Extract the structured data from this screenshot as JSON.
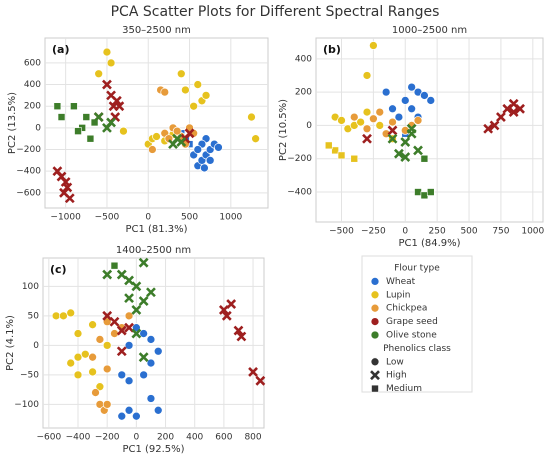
{
  "title": "PCA Scatter Plots for Different Spectral Ranges",
  "legend": {
    "title": "Flour type",
    "entries": [
      {
        "label": "Wheat",
        "color": "#2a6fd0"
      },
      {
        "label": "Lupin",
        "color": "#e6c21e"
      },
      {
        "label": "Chickpea",
        "color": "#e79b3a"
      },
      {
        "label": "Grape seed",
        "color": "#9e1f1f"
      },
      {
        "label": "Olive stone",
        "color": "#3d7d2a"
      }
    ],
    "class_title": "Phenolics class",
    "classes": [
      {
        "label": "Low",
        "marker": "circle"
      },
      {
        "label": "High",
        "marker": "x"
      },
      {
        "label": "Medium",
        "marker": "square"
      }
    ]
  },
  "chart_data": [
    {
      "type": "scatter",
      "panel_label": "(a)",
      "title": "350–2500 nm",
      "xlabel": "PC1 (81.3%)",
      "ylabel": "PC2 (13.5%)",
      "grid": true,
      "xlim": [
        -1250,
        1450
      ],
      "ylim": [
        -740,
        830
      ],
      "xticks": [
        {
          "value": -1000,
          "label": "−1000"
        },
        {
          "value": -500,
          "label": "−500"
        },
        0,
        500,
        1000
      ],
      "yticks": [
        {
          "value": -600,
          "label": "−600"
        },
        {
          "value": -400,
          "label": "−400"
        },
        {
          "value": -200,
          "label": "−200"
        },
        0,
        200,
        400,
        600
      ],
      "series": [
        {
          "name": "Wheat",
          "color": "#2a6fd0",
          "x": [
            600,
            650,
            700,
            750,
            800,
            850,
            550,
            500,
            450,
            700,
            650,
            600,
            400,
            750,
            680
          ],
          "y": [
            -350,
            -300,
            -250,
            -200,
            -150,
            -180,
            -250,
            -150,
            -100,
            -100,
            -150,
            -200,
            -50,
            -300,
            -370
          ],
          "classes": [
            "Low",
            "Low",
            "Low",
            "Low",
            "Low",
            "Low",
            "Low",
            "Medium",
            "Low",
            "Low",
            "Low",
            "Low",
            "Medium",
            "Low",
            "Low"
          ]
        },
        {
          "name": "Lupin",
          "color": "#e6c21e",
          "x": [
            400,
            450,
            600,
            650,
            700,
            550,
            1300,
            1250,
            -500,
            -450,
            -600,
            -300,
            0,
            50,
            100,
            200,
            300
          ],
          "y": [
            500,
            350,
            400,
            250,
            300,
            200,
            -100,
            100,
            700,
            600,
            500,
            -30,
            -150,
            -100,
            -80,
            -120,
            -60
          ],
          "classes": [
            "Low",
            "Low",
            "Low",
            "Low",
            "Low",
            "Low",
            "Low",
            "Low",
            "Low",
            "Low",
            "Low",
            "Low",
            "Low",
            "Low",
            "Low",
            "Low",
            "Low"
          ]
        },
        {
          "name": "Chickpea",
          "color": "#e79b3a",
          "x": [
            200,
            300,
            400,
            450,
            500,
            250,
            350,
            550,
            150,
            200,
            50
          ],
          "y": [
            -50,
            0,
            -80,
            -150,
            0,
            -100,
            -30,
            -50,
            350,
            330,
            -200
          ],
          "classes": [
            "Low",
            "Low",
            "Low",
            "Low",
            "Low",
            "Low",
            "Low",
            "Low",
            "Low",
            "Low",
            "Low"
          ]
        },
        {
          "name": "Grape seed",
          "color": "#9e1f1f",
          "x": [
            -450,
            -420,
            -400,
            -380,
            -350,
            -500,
            -600,
            -1100,
            -1050,
            -1000,
            -980,
            -1020,
            -950,
            450,
            500
          ],
          "y": [
            300,
            200,
            100,
            250,
            200,
            400,
            100,
            -400,
            -450,
            -500,
            -550,
            -600,
            -650,
            -100,
            -50
          ],
          "classes": [
            "High",
            "High",
            "High",
            "High",
            "High",
            "High",
            "High",
            "High",
            "High",
            "High",
            "High",
            "High",
            "High",
            "High",
            "High"
          ]
        },
        {
          "name": "Olive stone",
          "color": "#3d7d2a",
          "x": [
            -1100,
            -1050,
            -800,
            -750,
            -700,
            -650,
            -900,
            -600,
            -500,
            -450,
            -850,
            400,
            350,
            300
          ],
          "y": [
            200,
            100,
            0,
            100,
            -100,
            50,
            200,
            100,
            0,
            50,
            -30,
            -130,
            -100,
            -150
          ],
          "classes": [
            "Medium",
            "Medium",
            "Medium",
            "Medium",
            "Medium",
            "Medium",
            "Medium",
            "High",
            "High",
            "High",
            "Medium",
            "High",
            "High",
            "High"
          ]
        }
      ]
    },
    {
      "type": "scatter",
      "panel_label": "(b)",
      "title": "1000–2500 nm",
      "xlabel": "PC1 (84.9%)",
      "ylabel": "PC2 (10.5%)",
      "grid": true,
      "xlim": [
        -700,
        1080
      ],
      "ylim": [
        -580,
        525
      ],
      "xticks": [
        {
          "value": -500,
          "label": "−500"
        },
        {
          "value": -250,
          "label": "−250"
        },
        0,
        250,
        500,
        750,
        1000
      ],
      "yticks": [
        {
          "value": -400,
          "label": "−400"
        },
        {
          "value": -200,
          "label": "−200"
        },
        0,
        200,
        400
      ],
      "series": [
        {
          "name": "Wheat",
          "color": "#2a6fd0",
          "x": [
            -150,
            0,
            50,
            100,
            150,
            200,
            -100,
            -50,
            0,
            100,
            50
          ],
          "y": [
            200,
            150,
            100,
            200,
            180,
            150,
            100,
            50,
            -50,
            50,
            230
          ],
          "classes": [
            "Low",
            "Low",
            "Low",
            "Low",
            "Low",
            "Low",
            "Low",
            "Low",
            "Medium",
            "Low",
            "Low"
          ]
        },
        {
          "name": "Lupin",
          "color": "#e6c21e",
          "x": [
            -550,
            -500,
            -450,
            -400,
            -350,
            -300,
            -250,
            -300,
            -550,
            -500,
            -600,
            -400,
            -200,
            -100
          ],
          "y": [
            50,
            30,
            -20,
            0,
            20,
            80,
            480,
            300,
            -150,
            -180,
            -120,
            -200,
            0,
            -80
          ],
          "classes": [
            "Low",
            "Low",
            "Low",
            "Low",
            "Low",
            "Low",
            "Low",
            "Low",
            "Medium",
            "Medium",
            "Medium",
            "Medium",
            "Low",
            "Low"
          ]
        },
        {
          "name": "Chickpea",
          "color": "#e79b3a",
          "x": [
            -400,
            -300,
            -200,
            -100,
            0,
            -250,
            -150,
            50,
            100
          ],
          "y": [
            50,
            -20,
            80,
            20,
            -30,
            40,
            -50,
            0,
            30
          ],
          "classes": [
            "Low",
            "Low",
            "Low",
            "Low",
            "Low",
            "Low",
            "Low",
            "Low",
            "Low"
          ]
        },
        {
          "name": "Grape seed",
          "color": "#9e1f1f",
          "x": [
            700,
            750,
            800,
            850,
            900,
            650,
            850,
            -300,
            -100
          ],
          "y": [
            0,
            50,
            100,
            80,
            100,
            -20,
            130,
            -80,
            -30
          ],
          "classes": [
            "High",
            "High",
            "High",
            "High",
            "High",
            "High",
            "High",
            "High",
            "High"
          ]
        },
        {
          "name": "Olive stone",
          "color": "#3d7d2a",
          "x": [
            0,
            50,
            100,
            150,
            -50,
            0,
            100,
            150,
            200,
            50,
            -100
          ],
          "y": [
            -100,
            -50,
            -150,
            -200,
            -170,
            -190,
            -400,
            -420,
            -400,
            -20,
            -80
          ],
          "classes": [
            "High",
            "High",
            "High",
            "Medium",
            "High",
            "High",
            "Medium",
            "Medium",
            "Medium",
            "High",
            "High"
          ]
        }
      ]
    },
    {
      "type": "scatter",
      "panel_label": "(c)",
      "title": "1400–2500 nm",
      "xlabel": "PC1 (92.5%)",
      "ylabel": "PC2 (4.1%)",
      "grid": true,
      "xlim": [
        -640,
        875
      ],
      "ylim": [
        -140,
        148
      ],
      "xticks": [
        {
          "value": -600,
          "label": "−600"
        },
        {
          "value": -400,
          "label": "−400"
        },
        {
          "value": -200,
          "label": "−200"
        },
        0,
        200,
        400,
        600,
        800
      ],
      "yticks": [
        {
          "value": -100,
          "label": "−100"
        },
        {
          "value": -50,
          "label": "−50"
        },
        0,
        50,
        100
      ],
      "series": [
        {
          "name": "Wheat",
          "color": "#2a6fd0",
          "x": [
            -100,
            -50,
            0,
            100,
            150,
            50,
            100,
            0,
            50,
            -50,
            100,
            150,
            -100,
            -50
          ],
          "y": [
            -120,
            -110,
            -120,
            -90,
            -110,
            -50,
            -30,
            30,
            20,
            0,
            10,
            -10,
            -50,
            -60
          ],
          "classes": [
            "Low",
            "Low",
            "Low",
            "Low",
            "Low",
            "Low",
            "Low",
            "Low",
            "Low",
            "Low",
            "Low",
            "Low",
            "Low",
            "Low"
          ]
        },
        {
          "name": "Lupin",
          "color": "#e6c21e",
          "x": [
            -550,
            -500,
            -450,
            -400,
            -400,
            -350,
            -300,
            -450,
            -400,
            -250,
            -200,
            -300
          ],
          "y": [
            50,
            50,
            55,
            20,
            -20,
            -15,
            35,
            -30,
            -50,
            -70,
            0,
            -45
          ],
          "classes": [
            "Low",
            "Low",
            "Low",
            "Low",
            "Low",
            "Low",
            "Low",
            "Low",
            "Low",
            "Low",
            "Low",
            "Low"
          ]
        },
        {
          "name": "Chickpea",
          "color": "#e79b3a",
          "x": [
            -300,
            -250,
            -200,
            -280,
            -250,
            -220,
            -200,
            -150,
            -100,
            -50,
            -200
          ],
          "y": [
            -20,
            10,
            -40,
            -80,
            -100,
            -110,
            40,
            20,
            30,
            50,
            -100
          ],
          "classes": [
            "Low",
            "Low",
            "Low",
            "Low",
            "Low",
            "Low",
            "Low",
            "Low",
            "Low",
            "Low",
            "Low"
          ]
        },
        {
          "name": "Grape seed",
          "color": "#9e1f1f",
          "x": [
            -150,
            -100,
            -50,
            -200,
            600,
            650,
            620,
            700,
            720,
            800,
            850,
            -100
          ],
          "y": [
            40,
            25,
            30,
            50,
            60,
            70,
            50,
            25,
            15,
            -45,
            -60,
            -10
          ],
          "classes": [
            "High",
            "High",
            "High",
            "High",
            "High",
            "High",
            "High",
            "High",
            "High",
            "High",
            "High",
            "High"
          ]
        },
        {
          "name": "Olive stone",
          "color": "#3d7d2a",
          "x": [
            -150,
            -100,
            -50,
            0,
            50,
            100,
            50,
            0,
            -50,
            0,
            50,
            -200
          ],
          "y": [
            135,
            120,
            110,
            100,
            140,
            90,
            75,
            60,
            80,
            20,
            -20,
            120
          ],
          "classes": [
            "Medium",
            "High",
            "High",
            "High",
            "High",
            "High",
            "High",
            "High",
            "High",
            "High",
            "High",
            "High"
          ]
        }
      ]
    }
  ]
}
